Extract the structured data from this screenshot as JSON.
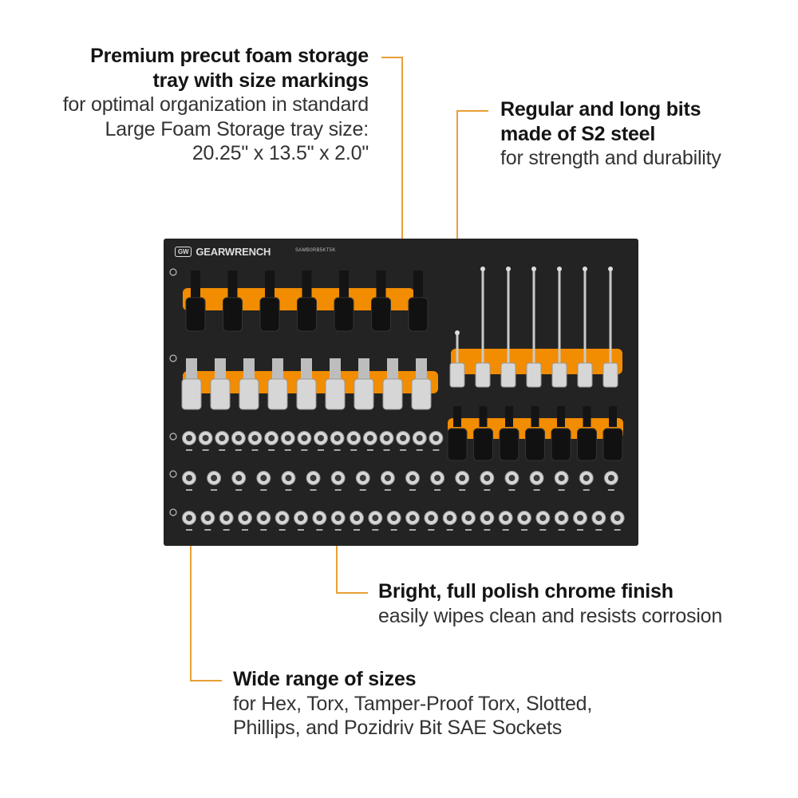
{
  "callouts": {
    "foam": {
      "title_line1": "Premium precut foam storage",
      "title_line2": "tray with size markings",
      "body_line1": "for optimal organization in standard",
      "body_line2": "Large Foam Storage tray size:",
      "body_line3": "20.25\" x 13.5\" x 2.0\""
    },
    "bits": {
      "title_line1": "Regular and long bits",
      "title_line2": "made of S2 steel",
      "body_line1": "for strength and durability"
    },
    "chrome": {
      "title_line1": "Bright, full polish chrome finish",
      "body_line1": "easily wipes clean and resists corrosion"
    },
    "sizes": {
      "title_line1": "Wide range of sizes",
      "body_line1": "for Hex, Torx, Tamper-Proof Torx, Slotted,",
      "body_line2": "Phillips, and Pozidriv Bit SAE Sockets"
    }
  },
  "tray": {
    "brand": "GEARWRENCH",
    "brand_logo": "GW",
    "part_number": "SAMB0RB5KT5K",
    "colors": {
      "foam": "#232323",
      "accent": "#f28c00",
      "chrome": "#d6d6d6",
      "leader": "#e8a035"
    },
    "row1_impact_sockets": 7,
    "long_bits": 7,
    "hex_bit_sockets": 9,
    "row_right_impact_sockets": 7,
    "small_socket_rows": [
      16,
      18,
      24
    ]
  }
}
